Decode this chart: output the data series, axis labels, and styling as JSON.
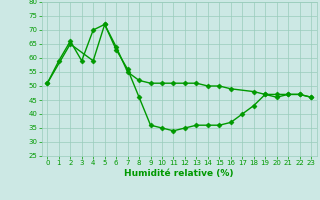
{
  "xlabel": "Humidité relative (%)",
  "bg_color": "#cce8e4",
  "grid_color": "#99ccbb",
  "line_color": "#009900",
  "xlim": [
    -0.5,
    23.5
  ],
  "ylim": [
    25,
    80
  ],
  "yticks": [
    25,
    30,
    35,
    40,
    45,
    50,
    55,
    60,
    65,
    70,
    75,
    80
  ],
  "xticks": [
    0,
    1,
    2,
    3,
    4,
    5,
    6,
    7,
    8,
    9,
    10,
    11,
    12,
    13,
    14,
    15,
    16,
    17,
    18,
    19,
    20,
    21,
    22,
    23
  ],
  "series1_x": [
    0,
    1,
    2,
    3,
    4,
    5,
    6,
    7,
    8,
    9,
    10,
    11,
    12,
    13,
    14,
    15,
    16,
    17,
    18,
    19,
    20,
    21,
    22,
    23
  ],
  "series1_y": [
    51,
    59,
    66,
    59,
    70,
    72,
    63,
    56,
    46,
    36,
    35,
    34,
    35,
    36,
    36,
    36,
    37,
    40,
    43,
    47,
    46,
    47,
    47,
    46
  ],
  "series2_x": [
    0,
    2,
    4,
    5,
    6,
    7,
    8,
    9,
    10,
    11,
    12,
    13,
    14,
    15,
    16,
    18,
    19,
    20,
    21,
    22,
    23
  ],
  "series2_y": [
    51,
    65,
    59,
    72,
    64,
    55,
    52,
    51,
    51,
    51,
    51,
    51,
    50,
    50,
    49,
    48,
    47,
    47,
    47,
    47,
    46
  ],
  "marker": "D",
  "marker_size": 2.5,
  "line_width": 1.0
}
